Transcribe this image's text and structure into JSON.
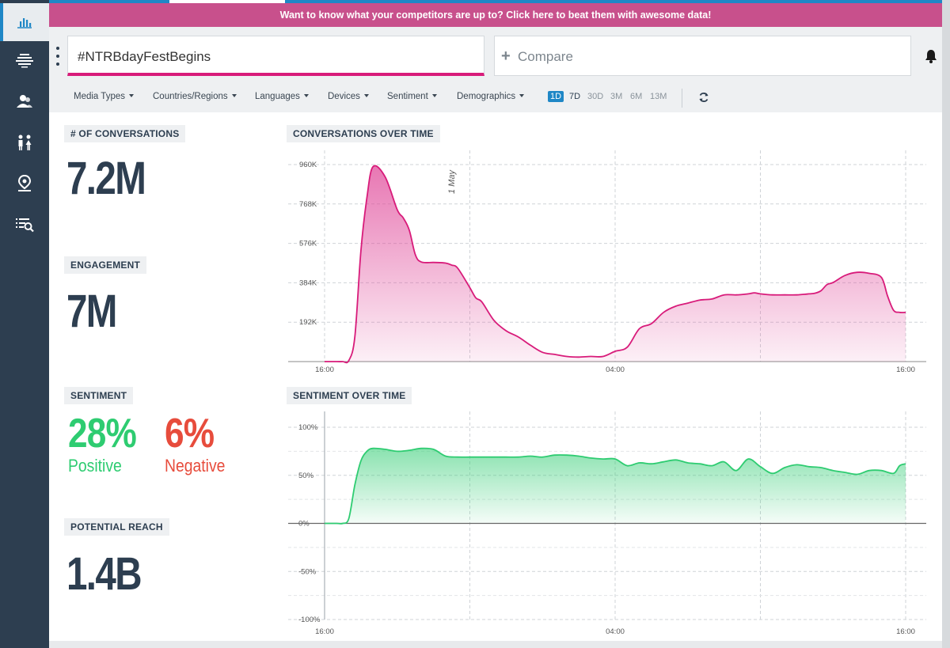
{
  "promo": {
    "text": "Want to know what your competitors are up to? Click here to beat them with awesome data!"
  },
  "search": {
    "query": "#NTRBdayFestBegins"
  },
  "compare": {
    "plus": "+",
    "label": "Compare"
  },
  "sidebar": {
    "items": [
      {
        "icon": "bar-chart-icon",
        "active": true
      },
      {
        "icon": "world-map-icon"
      },
      {
        "icon": "users-icon"
      },
      {
        "icon": "demographics-icon"
      },
      {
        "icon": "location-pin-icon"
      },
      {
        "icon": "list-search-icon"
      }
    ]
  },
  "filters": {
    "media_types": "Media Types",
    "countries": "Countries/Regions",
    "languages": "Languages",
    "devices": "Devices",
    "sentiment": "Sentiment",
    "demographics": "Demographics"
  },
  "ranges": {
    "r1d": "1D",
    "r7d": "7D",
    "r30d": "30D",
    "r3m": "3M",
    "r6m": "6M",
    "r13m": "13M",
    "selected": "1D"
  },
  "stats": {
    "conversations_label": "# OF CONVERSATIONS",
    "conversations_value": "7.2M",
    "engagement_label": "ENGAGEMENT",
    "engagement_value": "7M",
    "sentiment_label": "SENTIMENT",
    "positive_value": "28%",
    "positive_label": "Positive",
    "negative_value": "6%",
    "negative_label": "Negative",
    "reach_label": "POTENTIAL REACH",
    "reach_value": "1.4B"
  },
  "colors": {
    "accent": "#1f87c6",
    "brand_pink": "#d81b7a",
    "promo_bar": "#c8508c",
    "positive": "#2ecc71",
    "negative": "#e74c3c",
    "sidebar": "#2d3e50"
  },
  "chart_data": [
    {
      "type": "area",
      "title": "CONVERSATIONS OVER TIME",
      "annotation": "1 May",
      "annotation_x": 10,
      "x": [
        0,
        1,
        1.5,
        2,
        2.5,
        3,
        3.5,
        4,
        5,
        6,
        6.5,
        7,
        7.5,
        8,
        9,
        10,
        10.5,
        11,
        12,
        12.5,
        13,
        14,
        15,
        16,
        17,
        18,
        19,
        20,
        21,
        22,
        23,
        24,
        25,
        26,
        27,
        28,
        29,
        30,
        31,
        32,
        33,
        34,
        35,
        35.5,
        36,
        37,
        38,
        39,
        40,
        40.5,
        41,
        41.5,
        42,
        43,
        44,
        45,
        46,
        46.5,
        47,
        47.5,
        48
      ],
      "y": [
        0,
        0,
        0,
        5000,
        120000,
        540000,
        800000,
        950000,
        900000,
        740000,
        700000,
        640000,
        520000,
        485000,
        483000,
        480000,
        470000,
        455000,
        360000,
        310000,
        290000,
        200000,
        150000,
        120000,
        80000,
        45000,
        35000,
        25000,
        22000,
        25000,
        25000,
        50000,
        70000,
        160000,
        185000,
        240000,
        270000,
        285000,
        300000,
        305000,
        325000,
        325000,
        330000,
        335000,
        330000,
        325000,
        325000,
        325000,
        330000,
        333000,
        345000,
        375000,
        385000,
        420000,
        435000,
        430000,
        410000,
        320000,
        250000,
        240000,
        240000
      ],
      "xlim": [
        0,
        48
      ],
      "ylim": [
        0,
        960000
      ],
      "yticks": [
        "192K",
        "384K",
        "576K",
        "768K",
        "960K"
      ],
      "xticks": [
        "16:00",
        "04:00",
        "16:00"
      ]
    },
    {
      "type": "area",
      "title": "SENTIMENT OVER TIME",
      "x": [
        0,
        1,
        1.5,
        2,
        2.5,
        3,
        3.5,
        4,
        5,
        6,
        7,
        8,
        9,
        10,
        11,
        12,
        13,
        14,
        15,
        16,
        17,
        18,
        19,
        20,
        21,
        22,
        23,
        24,
        25,
        26,
        27,
        28,
        29,
        30,
        31,
        32,
        33,
        34,
        35,
        36,
        37,
        38,
        39,
        40,
        41,
        42,
        43,
        44,
        45,
        46,
        47,
        47.5,
        48
      ],
      "y": [
        0,
        0,
        0,
        5,
        40,
        65,
        75,
        78,
        77,
        75,
        76,
        78,
        77,
        70,
        69,
        69,
        69,
        69,
        69,
        69,
        70,
        69,
        71,
        71,
        70,
        68,
        67,
        67,
        60,
        63,
        62,
        64,
        66,
        63,
        62,
        60,
        64,
        55,
        67,
        59,
        52,
        58,
        61,
        59,
        58,
        55,
        53,
        51,
        55,
        55,
        52,
        60,
        62
      ],
      "xlim": [
        0,
        48
      ],
      "ylim": [
        -100,
        100
      ],
      "yticks": [
        "-100%",
        "-50%",
        "0%",
        "50%",
        "100%"
      ],
      "xticks": [
        "16:00",
        "04:00",
        "16:00"
      ]
    }
  ]
}
